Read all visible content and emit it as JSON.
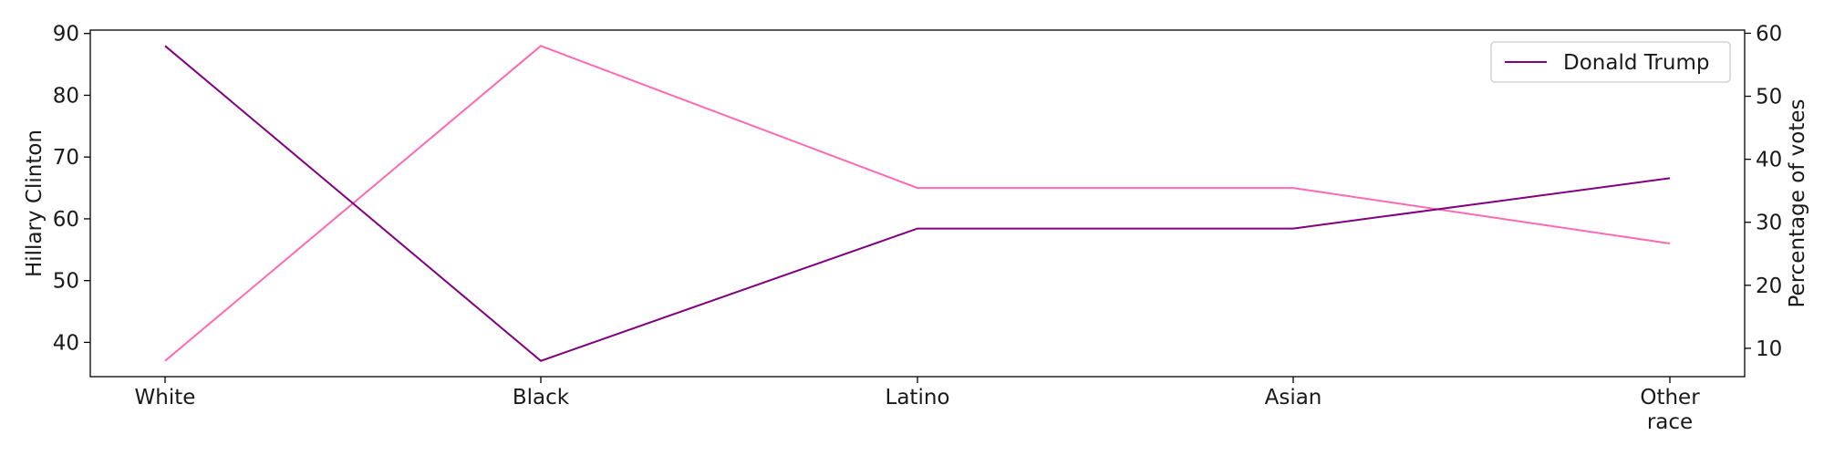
{
  "chart_data": {
    "type": "line",
    "categories": [
      "White",
      "Black",
      "Latino",
      "Asian",
      "Other\nrace"
    ],
    "series": [
      {
        "name": "Hillary Clinton",
        "axis": "left",
        "color": "#ff69b4",
        "values": [
          37,
          88,
          65,
          65,
          56
        ]
      },
      {
        "name": "Donald Trump",
        "axis": "right",
        "color": "#800080",
        "values": [
          58,
          8,
          29,
          29,
          37
        ]
      }
    ],
    "ylabel_left": "Hillary Clinton",
    "ylabel_right": "Percentage of votes",
    "ylim_left": [
      34.45,
      90.55
    ],
    "ylim_right": [
      5.5,
      60.5
    ],
    "yticks_left": [
      40,
      50,
      60,
      70,
      80,
      90
    ],
    "yticks_right": [
      10,
      20,
      30,
      40,
      50,
      60
    ],
    "legend": {
      "entries": [
        "Donald Trump"
      ],
      "position": "upper right"
    },
    "grid": false
  }
}
